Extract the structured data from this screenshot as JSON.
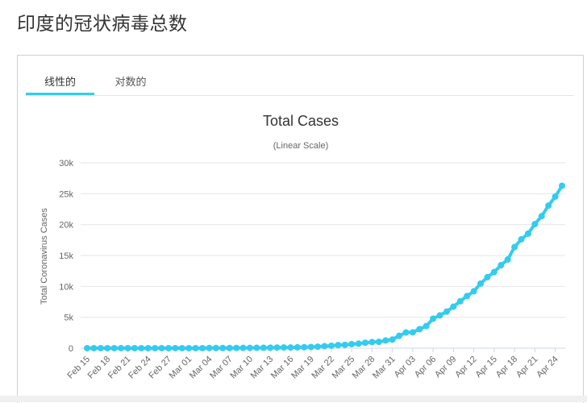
{
  "page": {
    "title": "印度的冠状病毒总数"
  },
  "tabs": [
    {
      "label": "线性的",
      "active": true
    },
    {
      "label": "对数的",
      "active": false
    }
  ],
  "colors": {
    "series": "#33ccee",
    "tab_underline": "#33ccee",
    "grid": "#e6e6e6"
  },
  "chart_data": {
    "type": "line",
    "title": "Total Cases",
    "subtitle": "(Linear Scale)",
    "ylabel": "Total Coronavirus Cases",
    "xlabel": "",
    "ylim": [
      0,
      30000
    ],
    "y_ticks": [
      0,
      5000,
      10000,
      15000,
      20000,
      25000,
      30000
    ],
    "y_tick_labels": [
      "0",
      "5k",
      "10k",
      "15k",
      "20k",
      "25k",
      "30k"
    ],
    "x_tick_labels": [
      "Feb 15",
      "Feb 18",
      "Feb 21",
      "Feb 24",
      "Feb 27",
      "Mar 01",
      "Mar 04",
      "Mar 07",
      "Mar 10",
      "Mar 13",
      "Mar 16",
      "Mar 19",
      "Mar 22",
      "Mar 25",
      "Mar 28",
      "Mar 31",
      "Apr 03",
      "Apr 06",
      "Apr 09",
      "Apr 12",
      "Apr 15",
      "Apr 18",
      "Apr 21",
      "Apr 24"
    ],
    "grid": true,
    "legend": "none",
    "series": [
      {
        "x": [
          "Feb 15",
          "Feb 16",
          "Feb 17",
          "Feb 18",
          "Feb 19",
          "Feb 20",
          "Feb 21",
          "Feb 22",
          "Feb 23",
          "Feb 24",
          "Feb 25",
          "Feb 26",
          "Feb 27",
          "Feb 28",
          "Feb 29",
          "Mar 01",
          "Mar 02",
          "Mar 03",
          "Mar 04",
          "Mar 05",
          "Mar 06",
          "Mar 07",
          "Mar 08",
          "Mar 09",
          "Mar 10",
          "Mar 11",
          "Mar 12",
          "Mar 13",
          "Mar 14",
          "Mar 15",
          "Mar 16",
          "Mar 17",
          "Mar 18",
          "Mar 19",
          "Mar 20",
          "Mar 21",
          "Mar 22",
          "Mar 23",
          "Mar 24",
          "Mar 25",
          "Mar 26",
          "Mar 27",
          "Mar 28",
          "Mar 29",
          "Mar 30",
          "Mar 31",
          "Apr 01",
          "Apr 02",
          "Apr 03",
          "Apr 04",
          "Apr 05",
          "Apr 06",
          "Apr 07",
          "Apr 08",
          "Apr 09",
          "Apr 10",
          "Apr 11",
          "Apr 12",
          "Apr 13",
          "Apr 14",
          "Apr 15",
          "Apr 16",
          "Apr 17",
          "Apr 18",
          "Apr 19",
          "Apr 20",
          "Apr 21",
          "Apr 22",
          "Apr 23",
          "Apr 24",
          "Apr 25"
        ],
        "values": [
          3,
          3,
          3,
          3,
          3,
          3,
          3,
          3,
          3,
          3,
          3,
          3,
          3,
          3,
          3,
          3,
          5,
          6,
          28,
          30,
          31,
          34,
          39,
          43,
          56,
          62,
          73,
          82,
          102,
          113,
          119,
          142,
          156,
          194,
          244,
          330,
          396,
          499,
          536,
          657,
          727,
          887,
          987,
          1024,
          1251,
          1397,
          1998,
          2543,
          2567,
          3082,
          3588,
          4778,
          5311,
          5916,
          6725,
          7598,
          8446,
          9205,
          10453,
          11487,
          12322,
          13430,
          14352,
          16365,
          17615,
          18539,
          20080,
          21370,
          23077,
          24530,
          26283
        ]
      }
    ]
  }
}
